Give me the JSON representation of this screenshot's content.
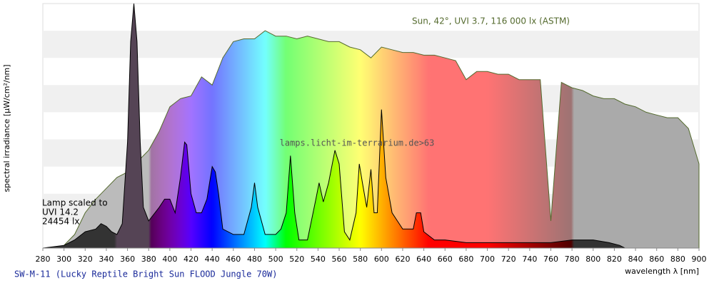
{
  "chart_data": {
    "type": "area",
    "title": "SW-M-11 (Lucky Reptile Bright Sun FLOOD Jungle 70W)",
    "watermark": "lamps.licht-im-terrarium.de>63",
    "x_label": "wavelength λ [nm]",
    "y_label": "spectral irradiance [μW/cm²/nm]",
    "xlim": [
      280,
      900
    ],
    "xticks": [
      280,
      300,
      320,
      340,
      360,
      380,
      400,
      420,
      440,
      460,
      480,
      500,
      520,
      540,
      560,
      580,
      600,
      620,
      640,
      660,
      680,
      700,
      720,
      740,
      760,
      780,
      800,
      820,
      840,
      860,
      880,
      900
    ],
    "ylim": [
      0,
      9
    ],
    "series": [
      {
        "name": "Sun, 42°, UVI 3.7, 116 000 lx (ASTM)",
        "color": "#556b2f",
        "x": [
          280,
          290,
          300,
          310,
          320,
          330,
          340,
          350,
          360,
          370,
          380,
          390,
          400,
          410,
          420,
          430,
          440,
          450,
          460,
          470,
          480,
          490,
          500,
          510,
          520,
          530,
          540,
          550,
          560,
          570,
          580,
          590,
          600,
          610,
          620,
          630,
          640,
          650,
          660,
          670,
          680,
          690,
          700,
          710,
          720,
          730,
          740,
          750,
          760,
          770,
          780,
          790,
          800,
          810,
          820,
          830,
          840,
          850,
          860,
          870,
          880,
          890,
          900
        ],
        "values": [
          0,
          0,
          0.1,
          0.5,
          1.3,
          1.8,
          2.2,
          2.6,
          2.8,
          3.2,
          3.6,
          4.3,
          5.2,
          5.5,
          5.6,
          6.3,
          6.0,
          7.0,
          7.6,
          7.7,
          7.7,
          8.0,
          7.8,
          7.8,
          7.7,
          7.8,
          7.7,
          7.6,
          7.6,
          7.4,
          7.3,
          7.0,
          7.4,
          7.3,
          7.2,
          7.2,
          7.1,
          7.1,
          7.0,
          6.9,
          6.2,
          6.5,
          6.5,
          6.4,
          6.4,
          6.2,
          6.2,
          6.2,
          1.0,
          6.1,
          5.9,
          5.8,
          5.6,
          5.5,
          5.5,
          5.3,
          5.2,
          5.0,
          4.9,
          4.8,
          4.8,
          4.4,
          3.1
        ]
      },
      {
        "name": [
          "Lamp scaled to",
          "UVI 14.2",
          "24454 lx"
        ],
        "color": "#000000",
        "x": [
          280,
          300,
          310,
          320,
          330,
          335,
          340,
          345,
          350,
          355,
          360,
          363,
          366,
          369,
          372,
          375,
          380,
          390,
          395,
          400,
          405,
          410,
          414,
          416,
          420,
          425,
          430,
          435,
          440,
          443,
          446,
          450,
          460,
          470,
          477,
          480,
          483,
          490,
          500,
          505,
          510,
          514,
          518,
          522,
          530,
          538,
          541,
          545,
          550,
          556,
          560,
          565,
          570,
          576,
          579,
          582,
          586,
          590,
          593,
          596,
          600,
          604,
          610,
          620,
          630,
          633,
          637,
          640,
          650,
          660,
          680,
          700,
          740,
          760,
          780,
          800,
          815,
          825,
          830
        ],
        "values": [
          0,
          0.1,
          0.3,
          0.6,
          0.7,
          0.9,
          0.8,
          0.6,
          0.5,
          0.9,
          3.9,
          7.6,
          9.0,
          7.6,
          3.9,
          1.5,
          1.0,
          1.5,
          1.8,
          1.8,
          1.3,
          2.6,
          3.9,
          3.8,
          2.0,
          1.3,
          1.3,
          1.8,
          3.0,
          2.8,
          2.0,
          0.7,
          0.5,
          0.5,
          1.5,
          2.4,
          1.5,
          0.5,
          0.5,
          0.7,
          1.3,
          3.4,
          1.3,
          0.3,
          0.3,
          1.8,
          2.4,
          1.7,
          2.4,
          3.6,
          3.1,
          0.6,
          0.3,
          1.3,
          3.1,
          2.4,
          1.5,
          2.9,
          1.3,
          1.3,
          5.1,
          2.6,
          1.3,
          0.7,
          0.7,
          1.3,
          1.3,
          0.6,
          0.3,
          0.3,
          0.2,
          0.2,
          0.2,
          0.2,
          0.3,
          0.3,
          0.2,
          0.1,
          0
        ]
      }
    ]
  }
}
